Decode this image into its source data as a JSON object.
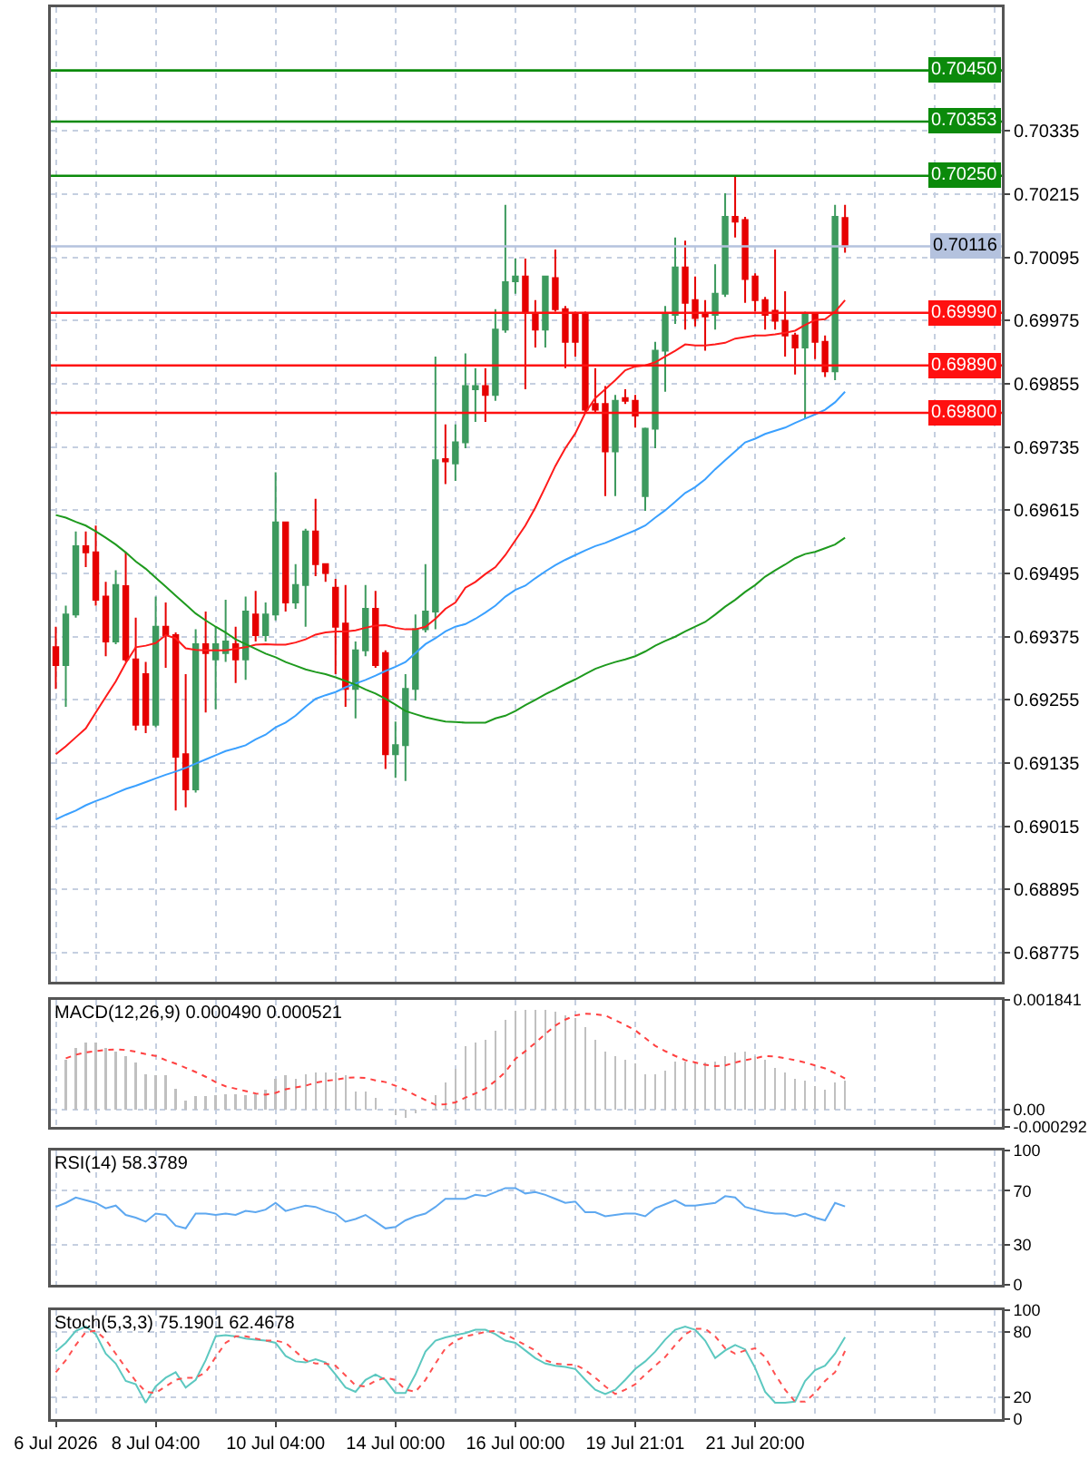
{
  "chart_data": [
    {
      "type": "candlestick",
      "tick_labels": "y",
      "grid": true,
      "categories": [
        null,
        null,
        null,
        null,
        null,
        null,
        null,
        null,
        null,
        null,
        null,
        null,
        null,
        null,
        null,
        null,
        null,
        null,
        null,
        null,
        null,
        null,
        null,
        null,
        null,
        null,
        null,
        null,
        null,
        null,
        null,
        null,
        null,
        null,
        null,
        null,
        null,
        null,
        null,
        null,
        null,
        null,
        null,
        null,
        null,
        null,
        null,
        null,
        null,
        null,
        null,
        null,
        null,
        null,
        null,
        null,
        null,
        null,
        null,
        null,
        null,
        null,
        null,
        null,
        null,
        null,
        null,
        null,
        null,
        null,
        null,
        null,
        null,
        null,
        null,
        null,
        null,
        null,
        null,
        null
      ],
      "colors": [
        "#e60000",
        "#3d9a5e",
        "#3d9a5e",
        "#e60000",
        "#e60000",
        "#e60000",
        "#3d9a5e",
        "#e60000",
        "#e60000",
        "#e60000",
        "#3d9a5e",
        "#e60000",
        "#e60000",
        "#e60000",
        "#3d9a5e",
        "#e60000",
        "#3d9a5e",
        "#3d9a5e",
        "#e60000",
        "#3d9a5e",
        "#e60000",
        "#3d9a5e",
        "#3d9a5e",
        "#e60000",
        "#3d9a5e",
        "#3d9a5e",
        "#e60000",
        "#e60000",
        "#e60000",
        "#e60000",
        "#3d9a5e",
        "#3d9a5e",
        "#e60000",
        "#e60000",
        "#3d9a5e",
        "#3d9a5e",
        "#3d9a5e",
        "#3d9a5e",
        "#3d9a5e",
        "#e60000",
        "#3d9a5e",
        "#3d9a5e",
        "#3d9a5e",
        "#e60000",
        "#3d9a5e",
        "#3d9a5e",
        "#3d9a5e",
        "#e60000",
        "#e60000",
        "#3d9a5e",
        "#e60000",
        "#e60000",
        "#e60000",
        "#e60000",
        "#e60000",
        "#e60000",
        "#3d9a5e",
        "#e60000",
        "#e60000",
        "#3d9a5e",
        "#3d9a5e",
        "#3d9a5e",
        "#3d9a5e",
        "#e60000",
        "#e60000",
        "#e60000",
        "#3d9a5e",
        "#3d9a5e",
        "#e60000",
        "#e60000",
        "#e60000",
        "#e60000",
        "#e60000",
        "#e60000",
        "#e60000",
        "#3d9a5e",
        "#e60000",
        "#e60000",
        "#3d9a5e",
        "#e60000"
      ],
      "ohlc": [
        [
          0.69355,
          0.69394,
          0.69276,
          0.69321
        ],
        [
          0.69321,
          0.69434,
          0.69242,
          0.69417
        ],
        [
          0.69417,
          0.69575,
          0.69411,
          0.69547
        ],
        [
          0.69547,
          0.69575,
          0.69507,
          0.69535
        ],
        [
          0.69535,
          0.69586,
          0.69434,
          0.69445
        ],
        [
          0.69451,
          0.69479,
          0.69338,
          0.69366
        ],
        [
          0.69366,
          0.69501,
          0.69361,
          0.69473
        ],
        [
          0.69471,
          0.69535,
          0.69327,
          0.69332
        ],
        [
          0.69332,
          0.69411,
          0.69197,
          0.69208
        ],
        [
          0.69304,
          0.69327,
          0.69192,
          0.69208
        ],
        [
          0.69208,
          0.69451,
          0.69203,
          0.69394
        ],
        [
          0.69394,
          0.6944,
          0.69316,
          0.69378
        ],
        [
          0.69378,
          0.69383,
          0.69045,
          0.69147
        ],
        [
          0.69152,
          0.69304,
          0.69051,
          0.69085
        ],
        [
          0.69085,
          0.69389,
          0.69079,
          0.69361
        ],
        [
          0.69361,
          0.69423,
          0.69231,
          0.69344
        ],
        [
          0.69332,
          0.69394,
          0.69237,
          0.69361
        ],
        [
          0.69344,
          0.69445,
          0.69327,
          0.69366
        ],
        [
          0.69361,
          0.69394,
          0.69287,
          0.69332
        ],
        [
          0.69332,
          0.69451,
          0.69293,
          0.69423
        ],
        [
          0.69417,
          0.69462,
          0.69366,
          0.69378
        ],
        [
          0.69378,
          0.6944,
          0.69366,
          0.69417
        ],
        [
          0.69417,
          0.69687,
          0.69406,
          0.69592
        ],
        [
          0.69592,
          0.69592,
          0.69423,
          0.6944
        ],
        [
          0.6944,
          0.69513,
          0.69428,
          0.69473
        ],
        [
          0.69473,
          0.6958,
          0.69394,
          0.69575
        ],
        [
          0.69575,
          0.69637,
          0.6949,
          0.69513
        ],
        [
          0.69513,
          0.69513,
          0.69479,
          0.69496
        ],
        [
          0.69468,
          0.69485,
          0.69304,
          0.69394
        ],
        [
          0.694,
          0.69473,
          0.69242,
          0.69276
        ],
        [
          0.69276,
          0.69366,
          0.6922,
          0.69349
        ],
        [
          0.69349,
          0.69473,
          0.69338,
          0.69428
        ],
        [
          0.69428,
          0.69462,
          0.69316,
          0.69321
        ],
        [
          0.69344,
          0.69349,
          0.69124,
          0.69152
        ],
        [
          0.69152,
          0.69214,
          0.69107,
          0.69169
        ],
        [
          0.69169,
          0.69304,
          0.69101,
          0.69276
        ],
        [
          0.69276,
          0.69417,
          0.69254,
          0.69389
        ],
        [
          0.69389,
          0.69513,
          0.69383,
          0.69423
        ],
        [
          0.69423,
          0.69907,
          0.69389,
          0.6971
        ],
        [
          0.69712,
          0.69778,
          0.69665,
          0.69708
        ],
        [
          0.69704,
          0.69778,
          0.69671,
          0.69744
        ],
        [
          0.69744,
          0.69913,
          0.69733,
          0.69851
        ],
        [
          0.69845,
          0.69885,
          0.69783,
          0.69851
        ],
        [
          0.69851,
          0.69885,
          0.69783,
          0.69834
        ],
        [
          0.69834,
          0.69997,
          0.69823,
          0.69958
        ],
        [
          0.69958,
          0.70195,
          0.69952,
          0.70048
        ],
        [
          0.7005,
          0.70093,
          0.70026,
          0.70059
        ],
        [
          0.70059,
          0.70093,
          0.69845,
          0.69992
        ],
        [
          0.69986,
          0.70014,
          0.69924,
          0.69958
        ],
        [
          0.69958,
          0.70059,
          0.69924,
          0.70059
        ],
        [
          0.70056,
          0.7011,
          0.69992,
          0.69997
        ],
        [
          0.69997,
          0.70003,
          0.69885,
          0.69935
        ],
        [
          0.69986,
          0.69992,
          0.69907,
          0.69935
        ],
        [
          0.69986,
          0.69992,
          0.698,
          0.69806
        ],
        [
          0.69817,
          0.69885,
          0.698,
          0.69806
        ],
        [
          0.69817,
          0.69851,
          0.69642,
          0.69727
        ],
        [
          0.69727,
          0.69834,
          0.69642,
          0.69823
        ],
        [
          0.69828,
          0.69845,
          0.69817,
          0.69823
        ],
        [
          0.69823,
          0.69834,
          0.69772,
          0.69795
        ],
        [
          0.69642,
          0.69772,
          0.69614,
          0.6977
        ],
        [
          0.6977,
          0.69935,
          0.69733,
          0.69918
        ],
        [
          0.69918,
          0.70003,
          0.6984,
          0.69986
        ],
        [
          0.69986,
          0.70133,
          0.69969,
          0.70076
        ],
        [
          0.70076,
          0.70127,
          0.69958,
          0.70009
        ],
        [
          0.70014,
          0.70059,
          0.69964,
          0.6998
        ],
        [
          0.69986,
          0.70014,
          0.69918,
          0.69983
        ],
        [
          0.69986,
          0.70082,
          0.69958,
          0.70026
        ],
        [
          0.70026,
          0.70217,
          0.7002,
          0.70172
        ],
        [
          0.70172,
          0.70251,
          0.70133,
          0.70163
        ],
        [
          0.70166,
          0.70172,
          0.70009,
          0.70054
        ],
        [
          0.70059,
          0.70065,
          0.69992,
          0.70014
        ],
        [
          0.70014,
          0.7002,
          0.69958,
          0.69986
        ],
        [
          0.69994,
          0.7011,
          0.69958,
          0.69975
        ],
        [
          0.69975,
          0.70031,
          0.69907,
          0.69947
        ],
        [
          0.69947,
          0.69952,
          0.69873,
          0.69924
        ],
        [
          0.69924,
          0.69992,
          0.69789,
          0.69986
        ],
        [
          0.69986,
          0.69986,
          0.69902,
          0.69935
        ],
        [
          0.69935,
          0.69947,
          0.69868,
          0.69879
        ],
        [
          0.69879,
          0.70195,
          0.69862,
          0.70172
        ],
        [
          0.7017,
          0.70195,
          0.70104,
          0.70116
        ]
      ],
      "series": [
        {
          "type": "line",
          "color": "#ff1a1a",
          "values": [
            0.69152,
            0.69167,
            0.69184,
            0.69201,
            0.69231,
            0.69261,
            0.6929,
            0.69325,
            0.69355,
            0.69358,
            0.69363,
            0.69378,
            0.69372,
            0.69353,
            0.6935,
            0.69349,
            0.69349,
            0.69349,
            0.69352,
            0.69355,
            0.6936,
            0.69361,
            0.6936,
            0.6936,
            0.69364,
            0.6937,
            0.69379,
            0.69383,
            0.69385,
            0.69385,
            0.69387,
            0.69392,
            0.69396,
            0.69397,
            0.69392,
            0.69389,
            0.69389,
            0.69394,
            0.69409,
            0.69428,
            0.6944,
            0.69468,
            0.69479,
            0.69494,
            0.69507,
            0.6953,
            0.69558,
            0.69586,
            0.6962,
            0.69659,
            0.69699,
            0.69733,
            0.69761,
            0.698,
            0.69828,
            0.69845,
            0.69862,
            0.69881,
            0.69888,
            0.6989,
            0.69896,
            0.69907,
            0.69918,
            0.6993,
            0.69928,
            0.69928,
            0.6993,
            0.69933,
            0.69941,
            0.69944,
            0.69947,
            0.69947,
            0.69949,
            0.69952,
            0.69956,
            0.69967,
            0.69976,
            0.69978,
            0.69992,
            0.70014
          ]
        },
        {
          "type": "line",
          "color": "#3aa0ff",
          "values": [
            0.69028,
            0.69037,
            0.69045,
            0.69055,
            0.69063,
            0.6907,
            0.69078,
            0.69086,
            0.69092,
            0.69099,
            0.69106,
            0.69113,
            0.69119,
            0.69126,
            0.69134,
            0.69142,
            0.6915,
            0.69158,
            0.69163,
            0.69169,
            0.6918,
            0.69189,
            0.69203,
            0.69212,
            0.69225,
            0.69242,
            0.69257,
            0.69264,
            0.6927,
            0.69279,
            0.69286,
            0.69293,
            0.69301,
            0.6931,
            0.69318,
            0.69327,
            0.69344,
            0.69361,
            0.69372,
            0.69385,
            0.69394,
            0.69399,
            0.69409,
            0.69421,
            0.69434,
            0.69451,
            0.69464,
            0.69472,
            0.69486,
            0.69499,
            0.69511,
            0.69521,
            0.6953,
            0.69539,
            0.69547,
            0.69553,
            0.69561,
            0.69569,
            0.69577,
            0.69586,
            0.69601,
            0.69615,
            0.69631,
            0.69648,
            0.69659,
            0.69674,
            0.69693,
            0.6971,
            0.69727,
            0.69744,
            0.69751,
            0.6976,
            0.69766,
            0.69772,
            0.69781,
            0.69789,
            0.69797,
            0.69806,
            0.6982,
            0.6984
          ]
        },
        {
          "type": "line",
          "color": "#1e9a1e",
          "values": [
            0.69606,
            0.69601,
            0.69593,
            0.69586,
            0.69575,
            0.69563,
            0.6955,
            0.69535,
            0.69518,
            0.69504,
            0.69487,
            0.6947,
            0.69453,
            0.69436,
            0.69419,
            0.69406,
            0.69394,
            0.69383,
            0.6937,
            0.69361,
            0.69352,
            0.69343,
            0.69336,
            0.69327,
            0.6932,
            0.69313,
            0.69308,
            0.69304,
            0.69298,
            0.69291,
            0.69284,
            0.69275,
            0.69267,
            0.69257,
            0.69246,
            0.69234,
            0.69228,
            0.69222,
            0.69218,
            0.69214,
            0.69213,
            0.69212,
            0.69212,
            0.69212,
            0.6922,
            0.69225,
            0.69234,
            0.69245,
            0.69255,
            0.69266,
            0.69275,
            0.69285,
            0.69294,
            0.69304,
            0.69314,
            0.69321,
            0.69327,
            0.69332,
            0.69338,
            0.69347,
            0.69358,
            0.69367,
            0.69375,
            0.69385,
            0.69394,
            0.69403,
            0.69417,
            0.69432,
            0.69445,
            0.6946,
            0.69473,
            0.69489,
            0.69501,
            0.69512,
            0.69524,
            0.69532,
            0.69536,
            0.69543,
            0.6955,
            0.69563
          ]
        }
      ],
      "ylim": [
        0.6872,
        0.7057
      ],
      "yticks": [
        0.68775,
        0.68895,
        0.69015,
        0.69135,
        0.69255,
        0.69375,
        0.69495,
        0.69615,
        0.69735,
        0.69855,
        0.69975,
        0.70095,
        0.70215,
        0.70335
      ],
      "ref_lines": [
        {
          "axis": "y",
          "value": 0.7045,
          "label": "0.70450",
          "color": "#0b8a0b"
        },
        {
          "axis": "y",
          "value": 0.70353,
          "label": "0.70353",
          "color": "#0b8a0b"
        },
        {
          "axis": "y",
          "value": 0.7025,
          "label": "0.70250",
          "color": "#0b8a0b"
        },
        {
          "axis": "y",
          "value": 0.70116,
          "label": "0.70116",
          "color": "#b4c2de"
        },
        {
          "axis": "y",
          "value": 0.6999,
          "label": "0.69990",
          "color": "#ff1010"
        },
        {
          "axis": "y",
          "value": 0.6989,
          "label": "0.69890",
          "color": "#ff1010"
        },
        {
          "axis": "y",
          "value": 0.698,
          "label": "0.69800",
          "color": "#ff1010"
        }
      ]
    },
    {
      "type": "bar",
      "tick_labels": "y",
      "grid": true,
      "title": "MACD(12,26,9) 0.000490 0.000521",
      "categories": [
        null,
        null,
        null,
        null,
        null,
        null,
        null,
        null,
        null,
        null,
        null,
        null,
        null,
        null,
        null,
        null,
        null,
        null,
        null,
        null,
        null,
        null,
        null,
        null,
        null,
        null,
        null,
        null,
        null,
        null,
        null,
        null,
        null,
        null,
        null,
        null,
        null,
        null,
        null,
        null,
        null,
        null,
        null,
        null,
        null,
        null,
        null,
        null,
        null,
        null,
        null,
        null,
        null,
        null,
        null,
        null,
        null,
        null,
        null,
        null,
        null,
        null,
        null,
        null,
        null,
        null,
        null,
        null,
        null,
        null,
        null,
        null,
        null,
        null,
        null,
        null,
        null,
        null,
        null,
        null
      ],
      "series": [
        {
          "type": "bar",
          "color": "#c0c0c0",
          "values": [
            null,
            0.00084,
            0.00103,
            0.00112,
            0.00112,
            0.00103,
            0.00098,
            0.0009,
            0.00079,
            0.00059,
            0.00057,
            0.00057,
            0.00035,
            0.00015,
            0.00022,
            0.00022,
            0.00024,
            0.00026,
            0.00026,
            0.00024,
            0.00026,
            0.00033,
            0.00051,
            0.00057,
            0.00051,
            0.00059,
            0.00062,
            0.00062,
            0.00062,
            0.00057,
            0.0003,
            0.0003,
            0.00019,
            null,
            -9e-05,
            -0.00014,
            -7e-05,
            null,
            0.00024,
            0.00046,
            0.00068,
            0.00106,
            0.00112,
            0.00117,
            0.00133,
            0.0015,
            0.00166,
            0.00168,
            0.00168,
            0.00168,
            0.00164,
            0.00158,
            0.00153,
            0.00139,
            0.00117,
            0.00098,
            0.0009,
            0.00084,
            0.00077,
            0.00059,
            0.00059,
            0.00066,
            0.00081,
            0.00081,
            0.00079,
            0.00079,
            0.00081,
            0.0009,
            0.00095,
            0.00097,
            0.0009,
            0.00084,
            0.0007,
            0.00062,
            0.00051,
            0.00048,
            0.0004,
            0.00033,
            0.00046,
            0.00049
          ]
        },
        {
          "type": "line",
          "color": "#ff4040",
          "line_style": "dotted",
          "values": [
            null,
            0.00086,
            0.00092,
            0.00096,
            0.00098,
            0.001,
            0.00101,
            0.001,
            0.00097,
            0.00093,
            0.0009,
            0.00083,
            0.00077,
            0.0007,
            0.00063,
            0.00055,
            0.00046,
            0.00039,
            0.00035,
            0.00031,
            0.00027,
            0.00025,
            0.00028,
            0.00034,
            0.00037,
            0.0004,
            0.00045,
            0.00048,
            0.0005,
            0.00053,
            0.00054,
            0.00053,
            0.00049,
            0.00046,
            0.0004,
            0.00033,
            0.00024,
            0.00016,
            8e-05,
            9e-05,
            0.00012,
            0.0002,
            0.00027,
            0.00035,
            0.00048,
            0.00063,
            0.00085,
            0.00098,
            0.00112,
            0.00127,
            0.00141,
            0.00151,
            0.00158,
            0.00161,
            0.0016,
            0.00158,
            0.0015,
            0.00142,
            0.00133,
            0.0012,
            0.00107,
            0.00098,
            0.0009,
            0.00083,
            0.00079,
            0.00075,
            0.00073,
            0.00074,
            0.00079,
            0.00083,
            0.00086,
            0.0009,
            0.00089,
            0.00086,
            0.00083,
            0.00079,
            0.00074,
            0.00069,
            0.00061,
            0.000521
          ]
        }
      ],
      "ylim": [
        -0.000292,
        0.001841
      ],
      "yticks": [
        -0.000292,
        {
          "value": 0,
          "label": "0.00"
        },
        0.001841
      ]
    },
    {
      "type": "line",
      "tick_labels": "y",
      "grid": true,
      "title": "RSI(14) 58.3789",
      "categories": [
        null,
        null,
        null,
        null,
        null,
        null,
        null,
        null,
        null,
        null,
        null,
        null,
        null,
        null,
        null,
        null,
        null,
        null,
        null,
        null,
        null,
        null,
        null,
        null,
        null,
        null,
        null,
        null,
        null,
        null,
        null,
        null,
        null,
        null,
        null,
        null,
        null,
        null,
        null,
        null,
        null,
        null,
        null,
        null,
        null,
        null,
        null,
        null,
        null,
        null,
        null,
        null,
        null,
        null,
        null,
        null,
        null,
        null,
        null,
        null,
        null,
        null,
        null,
        null,
        null,
        null,
        null,
        null,
        null,
        null,
        null,
        null,
        null,
        null,
        null,
        null,
        null,
        null,
        null,
        null
      ],
      "series": [
        {
          "color": "#5ea8f0",
          "values": [
            58,
            61,
            65,
            63,
            61,
            57,
            59,
            52,
            50,
            47,
            53,
            52,
            44,
            42,
            53,
            53,
            52,
            53,
            52,
            55,
            54,
            56,
            61,
            55,
            57,
            59,
            58,
            55,
            53,
            47,
            49,
            52,
            47,
            42,
            43,
            48,
            51,
            53,
            58,
            64,
            64,
            64,
            67,
            66,
            69,
            72,
            72,
            68,
            69,
            67,
            64,
            61,
            62,
            54,
            54,
            51,
            52,
            53,
            53,
            51,
            57,
            60,
            63,
            59,
            59,
            60,
            61,
            66,
            65,
            58,
            56,
            54,
            53,
            53,
            51,
            53,
            50,
            48,
            61,
            58.3789
          ]
        }
      ],
      "ylim": [
        0,
        100
      ],
      "yticks": [
        0,
        30,
        70,
        100
      ]
    },
    {
      "type": "line",
      "grid": true,
      "title": "Stoch(5,3,3) 75.1901 62.4678",
      "categories": [
        "6 Jul 2026",
        null,
        null,
        null,
        null,
        null,
        null,
        null,
        null,
        null,
        "8 Jul 04:00",
        null,
        null,
        null,
        null,
        null,
        null,
        null,
        null,
        null,
        null,
        null,
        "10 Jul 04:00",
        null,
        null,
        null,
        null,
        null,
        null,
        null,
        null,
        null,
        null,
        null,
        "14 Jul 00:00",
        null,
        null,
        null,
        null,
        null,
        null,
        null,
        null,
        null,
        null,
        null,
        "16 Jul 00:00",
        null,
        null,
        null,
        null,
        null,
        null,
        null,
        null,
        null,
        null,
        null,
        "19 Jul 21:01",
        null,
        null,
        null,
        null,
        null,
        null,
        null,
        null,
        null,
        null,
        null,
        "21 Jul 20:00",
        null,
        null,
        null,
        null,
        null,
        null,
        null,
        null,
        null
      ],
      "series": [
        {
          "color": "#5cc8c0",
          "values": [
            62,
            70,
            81,
            85,
            78,
            60,
            51,
            35,
            32,
            15,
            30,
            38,
            43,
            29,
            36,
            54,
            76,
            77,
            76,
            74,
            73,
            72,
            70,
            58,
            53,
            52,
            55,
            52,
            41,
            29,
            25,
            36,
            41,
            36,
            24,
            24,
            41,
            62,
            72,
            75,
            77,
            79,
            82,
            82,
            78,
            72,
            70,
            63,
            56,
            51,
            49,
            48,
            46,
            36,
            27,
            23,
            27,
            36,
            46,
            53,
            62,
            73,
            82,
            85,
            82,
            72,
            56,
            63,
            68,
            64,
            47,
            25,
            15,
            15,
            16,
            35,
            45,
            49,
            60,
            75.1901
          ]
        },
        {
          "color": "#ff5050",
          "line_style": "dotted",
          "values": [
            43,
            54,
            68,
            80,
            81,
            73,
            60,
            47,
            35,
            25,
            24,
            30,
            36,
            38,
            38,
            43,
            57,
            70,
            76,
            76,
            74,
            72,
            72,
            70,
            62,
            54,
            51,
            51,
            49,
            40,
            31,
            30,
            35,
            38,
            36,
            27,
            25,
            36,
            51,
            65,
            72,
            76,
            78,
            80,
            81,
            78,
            73,
            68,
            63,
            54,
            51,
            50,
            50,
            45,
            38,
            30,
            23,
            27,
            32,
            41,
            49,
            57,
            68,
            78,
            83,
            83,
            76,
            65,
            60,
            63,
            65,
            57,
            41,
            27,
            16,
            16,
            24,
            35,
            43,
            62.4678
          ]
        }
      ],
      "ylim": [
        0,
        100
      ],
      "yticks": [
        0,
        20,
        80,
        100
      ]
    }
  ]
}
